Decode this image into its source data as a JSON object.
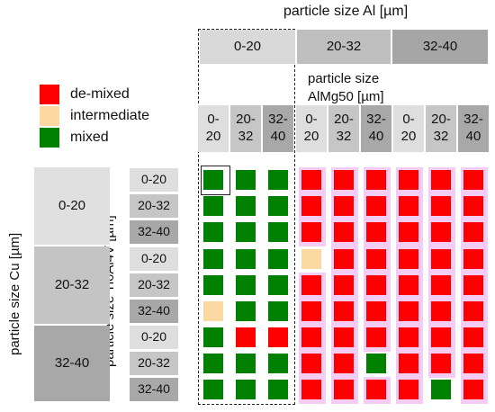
{
  "title_al": "particle size Al [µm]",
  "title_mg": "particle size\nAlMg50 [µm]",
  "title_cu": "particle size Cu [µm]",
  "title_ti": "particle size Ti6Al4V [µm]",
  "al_headers": [
    "0-20",
    "20-32",
    "32-40"
  ],
  "mg_headers": [
    "0-\n20",
    "20-\n32",
    "32-\n40",
    "0-\n20",
    "20-\n32",
    "32-\n40",
    "0-\n20",
    "20-\n32",
    "32-\n40"
  ],
  "cu_labels": [
    "0-20",
    "20-32",
    "32-40"
  ],
  "ti_labels": [
    "0-20",
    "20-32",
    "32-40",
    "0-20",
    "20-32",
    "32-40",
    "0-20",
    "20-32",
    "32-40"
  ],
  "legend": [
    {
      "label": "de-mixed",
      "color": "#ff0000"
    },
    {
      "label": "intermediate",
      "color": "#fcd9a0"
    },
    {
      "label": "mixed",
      "color": "#008000"
    }
  ],
  "colors": {
    "demixed": "#ff0000",
    "intermediate": "#fcd9a0",
    "mixed": "#008000"
  },
  "grid": [
    [
      "M",
      "M",
      "M",
      "D",
      "D",
      "D",
      "D",
      "D",
      "D"
    ],
    [
      "M",
      "M",
      "M",
      "D",
      "D",
      "D",
      "D",
      "D",
      "D"
    ],
    [
      "M",
      "M",
      "M",
      "D",
      "D",
      "D",
      "D",
      "D",
      "D"
    ],
    [
      "M",
      "M",
      "M",
      "I",
      "D",
      "D",
      "D",
      "D",
      "D"
    ],
    [
      "M",
      "M",
      "M",
      "D",
      "D",
      "D",
      "D",
      "D",
      "D"
    ],
    [
      "I",
      "M",
      "M",
      "D",
      "D",
      "D",
      "D",
      "D",
      "D"
    ],
    [
      "M",
      "D",
      "D",
      "D",
      "D",
      "D",
      "D",
      "D",
      "D"
    ],
    [
      "M",
      "M",
      "M",
      "D",
      "D",
      "M",
      "D",
      "D",
      "D"
    ],
    [
      "M",
      "M",
      "M",
      "D",
      "D",
      "D",
      "D",
      "M",
      "D"
    ]
  ]
}
